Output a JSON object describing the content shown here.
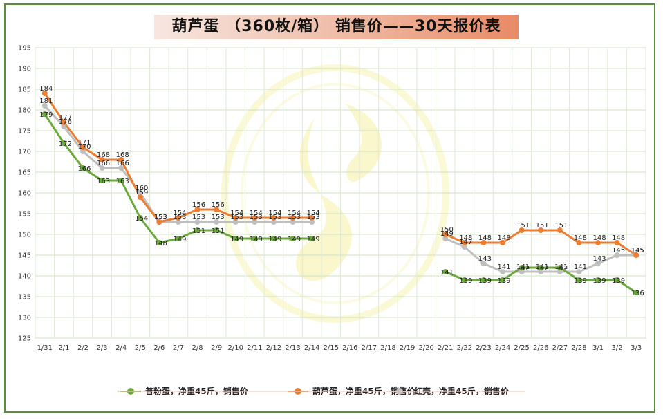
{
  "chart_data": {
    "type": "line",
    "title": "葫芦蛋 （360枚/箱） 销售价——30天报价表",
    "xlabel": "",
    "ylabel": "",
    "ylim": [
      125,
      195
    ],
    "yticks": [
      125,
      130,
      135,
      140,
      145,
      150,
      155,
      160,
      165,
      170,
      175,
      180,
      185,
      190,
      195
    ],
    "grid": true,
    "legend_position": "bottom",
    "categories": [
      "1/31",
      "2/1",
      "2/2",
      "2/3",
      "2/4",
      "2/5",
      "2/6",
      "2/7",
      "2/8",
      "2/9",
      "2/10",
      "2/11",
      "2/12",
      "2/13",
      "2/14",
      "2/15",
      "2/16",
      "2/17",
      "2/18",
      "2/19",
      "2/20",
      "2/21",
      "2/22",
      "2/23",
      "2/24",
      "2/25",
      "2/26",
      "2/27",
      "2/28",
      "3/1",
      "3/2",
      "3/3"
    ],
    "series": [
      {
        "name": "普粉蛋，净重45斤，销售价",
        "color": "#6aaa3a",
        "values": [
          179,
          172,
          166,
          163,
          163,
          154,
          148,
          149,
          151,
          151,
          149,
          149,
          149,
          149,
          149,
          null,
          null,
          null,
          null,
          null,
          null,
          141,
          139,
          139,
          139,
          142,
          142,
          142,
          139,
          139,
          139,
          136
        ]
      },
      {
        "name": "葫芦蛋，净重45斤，销售价",
        "color": "#ed7d31",
        "values": [
          184,
          177,
          171,
          168,
          168,
          159,
          153,
          154,
          156,
          156,
          154,
          154,
          154,
          154,
          154,
          null,
          null,
          null,
          null,
          null,
          null,
          150,
          148,
          148,
          148,
          151,
          151,
          151,
          148,
          148,
          148,
          145
        ]
      },
      {
        "name": "红壳，净重45斤，销售价",
        "color": "#bfbfbf",
        "values": [
          181,
          176,
          170,
          166,
          166,
          160,
          153,
          153,
          153,
          153,
          153,
          153,
          153,
          153,
          153,
          null,
          null,
          null,
          null,
          null,
          null,
          149,
          147,
          143,
          141,
          141,
          141,
          141,
          141,
          143,
          145,
          145
        ]
      }
    ]
  }
}
